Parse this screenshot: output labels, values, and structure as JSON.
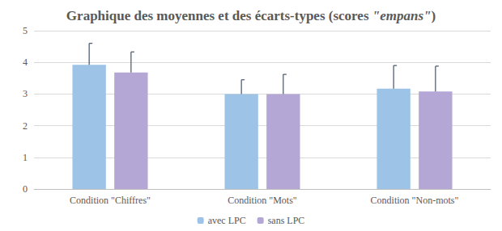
{
  "chart_data": {
    "type": "bar",
    "title": "Graphique des moyennes et des écarts-types (scores \"empans\")",
    "categories": [
      "Condition \"Chiffres\"",
      "Condition \"Mots\"",
      "Condition \"Non-mots\""
    ],
    "series": [
      {
        "name": "avec LPC",
        "color": "#9dc3e6",
        "values": [
          3.92,
          3.0,
          3.17
        ],
        "errors": [
          0.68,
          0.45,
          0.73
        ]
      },
      {
        "name": "sans LPC",
        "color": "#b4a7d6",
        "values": [
          3.68,
          3.0,
          3.08
        ],
        "errors": [
          0.65,
          0.62,
          0.8
        ]
      }
    ],
    "ylim": [
      0,
      5
    ],
    "yticks": [
      0,
      1,
      2,
      3,
      4,
      5
    ],
    "grid": true,
    "legend": "bottom"
  }
}
